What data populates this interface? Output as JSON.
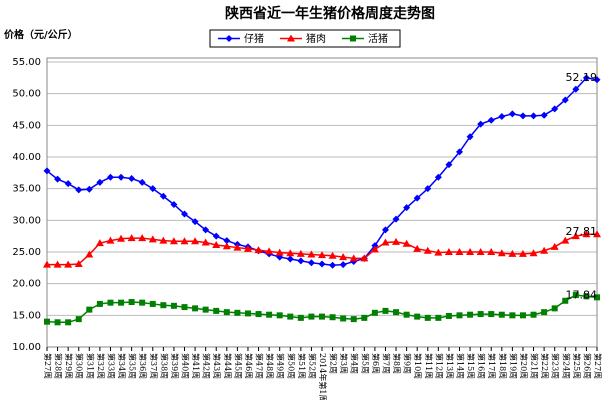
{
  "chart_data": {
    "type": "line",
    "title": "陕西省近一年生猪价格周度走势图",
    "y_label": "价格（元/公斤）",
    "categories": [
      "第27周",
      "第28周",
      "第29周",
      "第30周",
      "第31周",
      "第32周",
      "第33周",
      "第34周",
      "第35周",
      "第36周",
      "第37周",
      "第38周",
      "第39周",
      "第40周",
      "第41周",
      "第42周",
      "第43周",
      "第44周",
      "第45周",
      "第46周",
      "第47周",
      "第48周",
      "第49周",
      "第50周",
      "第51周",
      "第52周",
      "2014年第1周",
      "第2周",
      "第3周",
      "第4周",
      "第5周",
      "第6周",
      "第7周",
      "第8周",
      "第9周",
      "第10周",
      "第11周",
      "第12周",
      "第13周",
      "第14周",
      "第15周",
      "第16周",
      "第17周",
      "第18周",
      "第19周",
      "第20周",
      "第21周",
      "第22周",
      "第23周",
      "第24周",
      "第25周",
      "第26周",
      "第27周"
    ],
    "series": [
      {
        "name": "仔猪",
        "color": "#0000ff",
        "marker": "diamond",
        "values": [
          37.8,
          36.5,
          35.8,
          34.8,
          34.9,
          36.0,
          36.8,
          36.8,
          36.6,
          36.0,
          35.0,
          33.8,
          32.5,
          31.0,
          29.8,
          28.5,
          27.5,
          26.8,
          26.2,
          25.8,
          25.2,
          24.7,
          24.2,
          23.9,
          23.6,
          23.3,
          23.1,
          22.9,
          23.0,
          23.5,
          24.0,
          26.0,
          28.5,
          30.2,
          32.0,
          33.5,
          35.0,
          36.8,
          38.8,
          40.8,
          43.2,
          45.2,
          45.8,
          46.4,
          46.8,
          46.5,
          46.5,
          46.6,
          47.6,
          49.0,
          50.7,
          52.5,
          52.19
        ]
      },
      {
        "name": "猪肉",
        "color": "#ff0000",
        "marker": "triangle",
        "values": [
          23.0,
          23.0,
          23.0,
          23.1,
          24.6,
          26.4,
          26.8,
          27.1,
          27.2,
          27.2,
          27.0,
          26.8,
          26.7,
          26.7,
          26.7,
          26.5,
          26.1,
          25.9,
          25.7,
          25.5,
          25.3,
          25.1,
          24.9,
          24.8,
          24.7,
          24.6,
          24.5,
          24.4,
          24.2,
          24.0,
          24.0,
          25.4,
          26.5,
          26.6,
          26.3,
          25.5,
          25.2,
          24.9,
          25.0,
          25.0,
          25.0,
          25.0,
          25.0,
          24.8,
          24.7,
          24.7,
          24.8,
          25.2,
          25.8,
          26.8,
          27.5,
          27.8,
          27.81
        ]
      },
      {
        "name": "活猪",
        "color": "#008000",
        "marker": "square",
        "values": [
          14.0,
          13.9,
          13.9,
          14.4,
          15.9,
          16.8,
          17.0,
          17.0,
          17.1,
          17.0,
          16.8,
          16.6,
          16.5,
          16.3,
          16.1,
          15.9,
          15.7,
          15.5,
          15.4,
          15.3,
          15.2,
          15.1,
          15.0,
          14.8,
          14.6,
          14.8,
          14.8,
          14.7,
          14.5,
          14.4,
          14.6,
          15.4,
          15.7,
          15.5,
          15.1,
          14.8,
          14.6,
          14.6,
          14.9,
          15.0,
          15.1,
          15.2,
          15.2,
          15.1,
          15.0,
          15.0,
          15.1,
          15.5,
          16.1,
          17.3,
          18.2,
          18.0,
          17.84
        ]
      }
    ],
    "ylim": [
      10,
      55
    ],
    "yticks": [
      {
        "value": 10,
        "label": "10.00"
      },
      {
        "value": 15,
        "label": "15.00"
      },
      {
        "value": 20,
        "label": "20.00"
      },
      {
        "value": 25,
        "label": "25.00"
      },
      {
        "value": 30,
        "label": "30.00"
      },
      {
        "value": 35,
        "label": "35.00"
      },
      {
        "value": 40,
        "label": "40.00"
      },
      {
        "value": 45,
        "label": "45.00"
      },
      {
        "value": 50,
        "label": "50.00"
      },
      {
        "value": 55,
        "label": "55.00"
      }
    ],
    "grid": true,
    "legend": "top",
    "data_labels": "last"
  }
}
